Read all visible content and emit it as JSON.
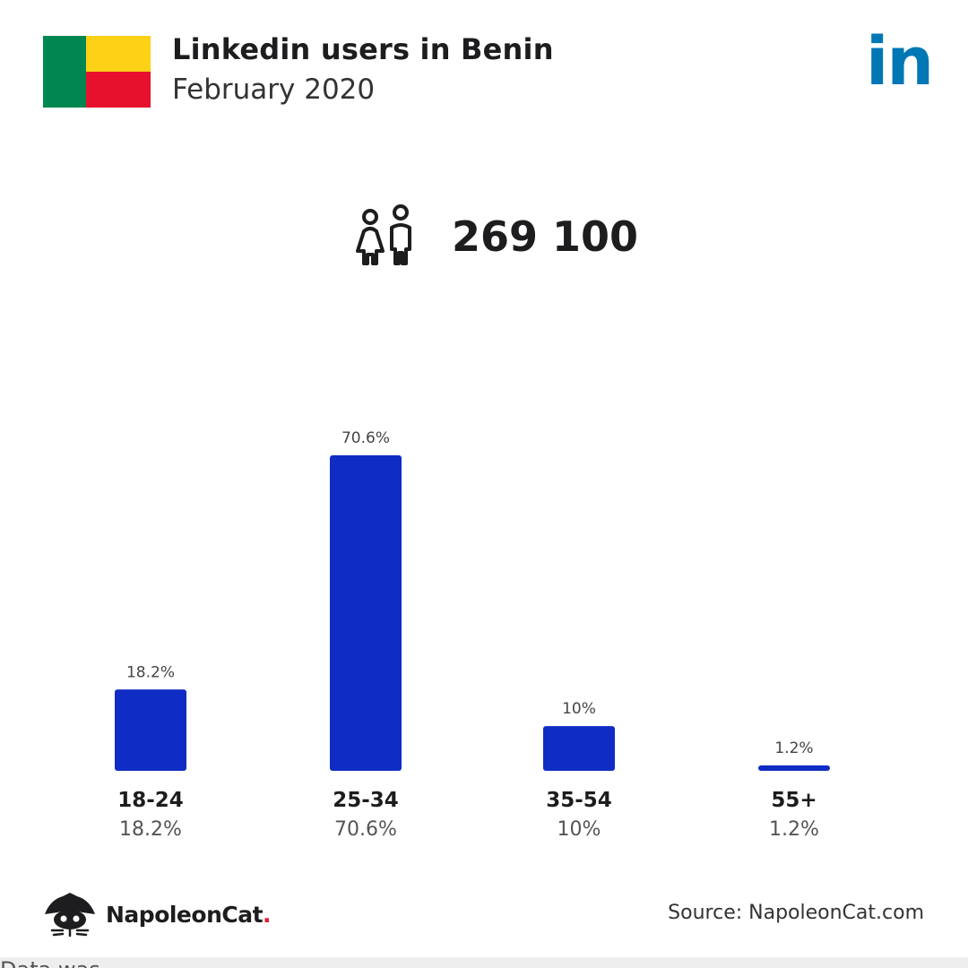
{
  "header": {
    "title": "Linkedin users in Benin",
    "subtitle": "February 2020",
    "flag_colors": {
      "green": "#008751",
      "yellow": "#fcd116",
      "red": "#e8112d"
    },
    "brand_logo": {
      "text": "in",
      "color": "#0077b5"
    }
  },
  "summary": {
    "icon": "people-icon",
    "total_users": "269 100"
  },
  "chart_data": {
    "type": "bar",
    "categories": [
      "18-24",
      "25-34",
      "35-54",
      "55+"
    ],
    "values": [
      18.2,
      70.6,
      10,
      1.2
    ],
    "value_labels": [
      "18.2%",
      "70.6%",
      "10%",
      "1.2%"
    ],
    "unit": "%",
    "bar_color": "#0f2cc4",
    "ylim": [
      0,
      70.6
    ],
    "grid": false,
    "legend": "none"
  },
  "footer": {
    "brand_name": "NapoleonCat",
    "brand_dot": ".",
    "brand_icon": "cat-icon",
    "source": "Source: NapoleonCat.com",
    "note": "Data was ..."
  }
}
